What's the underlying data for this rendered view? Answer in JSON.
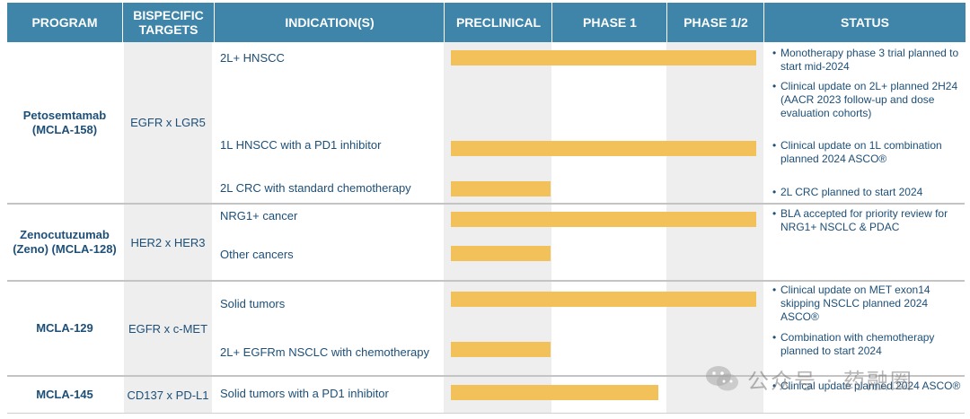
{
  "headers": {
    "program": "PROGRAM",
    "targets": "BISPECIFIC TARGETS",
    "indications": "INDICATION(S)",
    "preclinical": "PRECLINICAL",
    "phase1": "PHASE 1",
    "phase12": "PHASE 1/2",
    "status": "STATUS"
  },
  "programs": [
    {
      "name": "Petosemtamab (MCLA-158)",
      "targets": "EGFR x LGR5",
      "indications": [
        {
          "label": "2L+ HNSCC",
          "stage": "Phase 1/2"
        },
        {
          "label": "1L HNSCC with a PD1 inhibitor",
          "stage": "Phase 1/2"
        },
        {
          "label": "2L CRC with standard chemotherapy",
          "stage": "Preclinical"
        }
      ],
      "status": [
        "Monotherapy phase 3 trial planned to start mid-2024",
        "Clinical update on 2L+ planned 2H24 (AACR 2023 follow-up and dose evaluation cohorts)",
        "Clinical update on 1L combination planned 2024 ASCO®",
        "2L CRC planned to start 2024"
      ]
    },
    {
      "name": "Zenocutuzumab (Zeno) (MCLA-128)",
      "targets": "HER2 x HER3",
      "indications": [
        {
          "label": "NRG1+ cancer",
          "stage": "Phase 1/2"
        },
        {
          "label": "Other cancers",
          "stage": "Preclinical"
        }
      ],
      "status": [
        "BLA accepted for priority review for NRG1+ NSCLC & PDAC"
      ]
    },
    {
      "name": "MCLA-129",
      "targets": "EGFR x c-MET",
      "indications": [
        {
          "label": "Solid tumors",
          "stage": "Phase 1/2"
        },
        {
          "label": "2L+ EGFRm NSCLC with chemotherapy",
          "stage": "Preclinical"
        }
      ],
      "status": [
        "Clinical update on MET exon14 skipping NSCLC planned 2024 ASCO®",
        "Combination with chemotherapy planned to start 2024"
      ]
    },
    {
      "name": "MCLA-145",
      "targets": "CD137 x PD-L1",
      "indications": [
        {
          "label": "Solid tumors with a PD1 inhibitor",
          "stage": "Phase 1"
        }
      ],
      "status": [
        "Clinical update planned 2024 ASCO®"
      ]
    }
  ],
  "bar_color": "#f2c15a",
  "header_color": "#3e85a9",
  "text_color": "#1d4f78",
  "watermark": {
    "text": "公众号 · 药融圈",
    "icon": "wechat-icon"
  }
}
